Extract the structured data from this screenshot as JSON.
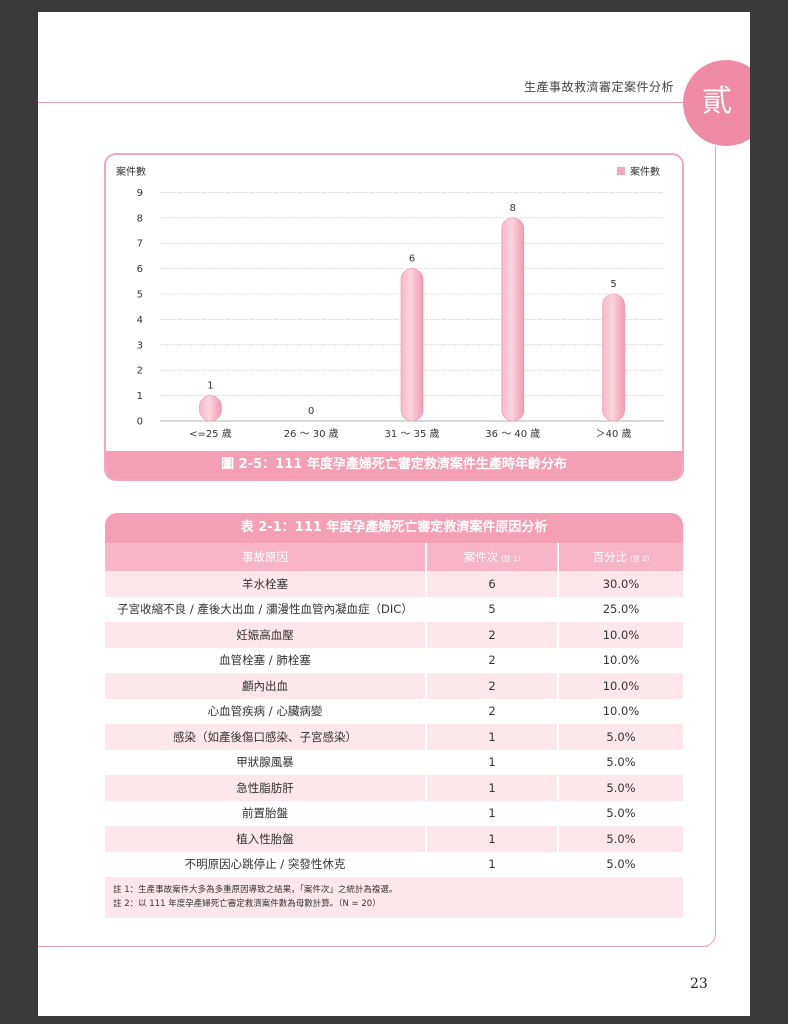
{
  "header": {
    "running_title": "生產事故救濟審定案件分析",
    "chapter_glyph": "貳"
  },
  "page_number": "23",
  "chart_data": {
    "type": "bar",
    "ylabel": "案件數",
    "legend": "案件數",
    "legend_position": "top-right",
    "grid": true,
    "ylim": [
      0,
      9
    ],
    "yticks": [
      0,
      1,
      2,
      3,
      4,
      5,
      6,
      7,
      8,
      9
    ],
    "categories": [
      "<=25 歲",
      "26 ～ 30 歲",
      "31 ～ 35 歲",
      "36 ～ 40 歲",
      "＞40 歲"
    ],
    "series": [
      {
        "name": "案件數",
        "values": [
          1,
          0,
          6,
          8,
          5
        ]
      }
    ],
    "bar_color": "#f4a7bb",
    "caption": "圖 2-5：111 年度孕產婦死亡審定救濟案件生產時年齡分布"
  },
  "table": {
    "title": "表 2-1：111 年度孕產婦死亡審定救濟案件原因分析",
    "columns": [
      {
        "label": "事故原因",
        "note": ""
      },
      {
        "label": "案件次",
        "note": "(註 1)"
      },
      {
        "label": "百分比",
        "note": "(註 2)"
      }
    ],
    "rows": [
      {
        "cause": "羊水栓塞",
        "count": "6",
        "percent": "30.0%"
      },
      {
        "cause": "子宮收縮不良 / 產後大出血 / 瀰漫性血管內凝血症（DIC）",
        "count": "5",
        "percent": "25.0%"
      },
      {
        "cause": "妊娠高血壓",
        "count": "2",
        "percent": "10.0%"
      },
      {
        "cause": "血管栓塞 / 肺栓塞",
        "count": "2",
        "percent": "10.0%"
      },
      {
        "cause": "顱內出血",
        "count": "2",
        "percent": "10.0%"
      },
      {
        "cause": "心血管疾病 / 心臟病變",
        "count": "2",
        "percent": "10.0%"
      },
      {
        "cause": "感染（如產後傷口感染、子宮感染）",
        "count": "1",
        "percent": "5.0%"
      },
      {
        "cause": "甲狀腺風暴",
        "count": "1",
        "percent": "5.0%"
      },
      {
        "cause": "急性脂肪肝",
        "count": "1",
        "percent": "5.0%"
      },
      {
        "cause": "前置胎盤",
        "count": "1",
        "percent": "5.0%"
      },
      {
        "cause": "植入性胎盤",
        "count": "1",
        "percent": "5.0%"
      },
      {
        "cause": "不明原因心跳停止 / 突發性休克",
        "count": "1",
        "percent": "5.0%"
      }
    ],
    "notes": [
      "註 1：生產事故案件大多為多重原因導致之結果，「案件次」之統計為複選。",
      "註 2：以 111 年度孕產婦死亡審定救濟案件數為母數計算。（N = 20）"
    ]
  }
}
